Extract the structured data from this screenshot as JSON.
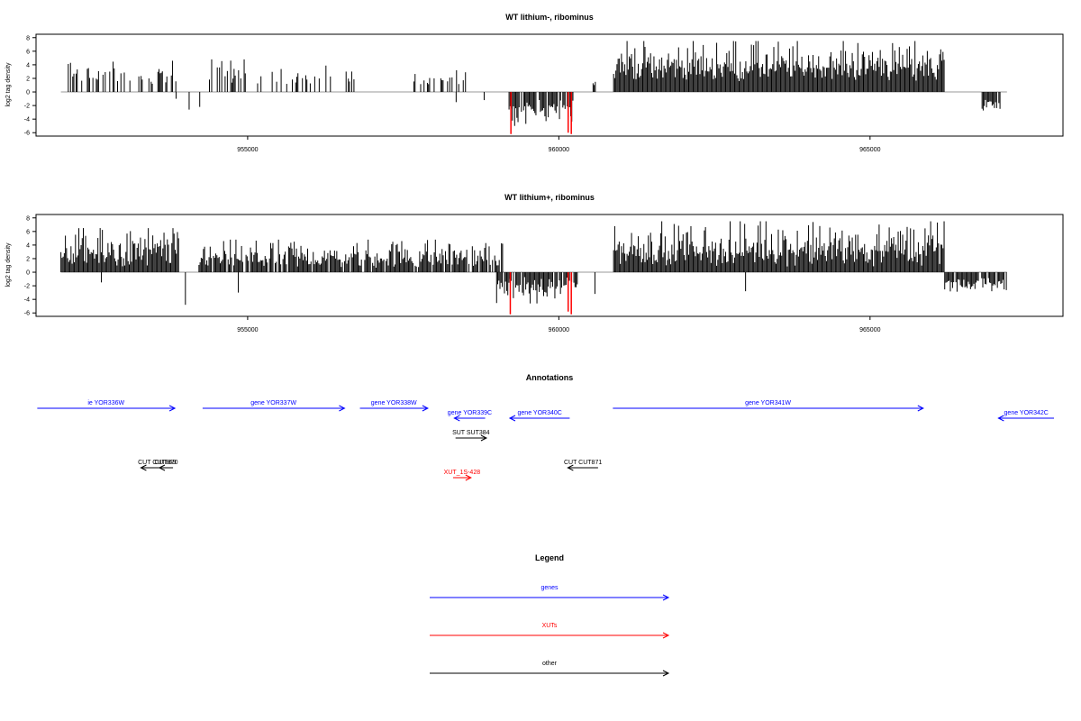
{
  "chart_data": [
    {
      "type": "bar",
      "title": "WT lithium-, ribominus",
      "ylabel": "log2 tag density",
      "xlim": [
        951600,
        968100
      ],
      "ylim": [
        -6.5,
        8.5
      ],
      "yticks": [
        8,
        6,
        4,
        2,
        0,
        -2,
        -4,
        -6
      ],
      "xticks": [
        955000,
        960000,
        965000
      ],
      "highlight_color": "#ff0000",
      "bar_color": "#000000",
      "blocks": [
        {
          "from": 952100,
          "to": 953850,
          "sign": 1,
          "min": 1.0,
          "max": 4.6,
          "density": 0.35
        },
        {
          "from": 954350,
          "to": 956800,
          "sign": 1,
          "min": 1.0,
          "max": 4.8,
          "density": 0.35
        },
        {
          "from": 957600,
          "to": 958500,
          "sign": 1,
          "min": 0.8,
          "max": 3.2,
          "density": 0.25
        },
        {
          "from": 959200,
          "to": 960230,
          "sign": -1,
          "min": 1.0,
          "max": 5.0,
          "density": 0.85
        },
        {
          "from": 960550,
          "to": 960600,
          "sign": 1,
          "min": 1.0,
          "max": 1.8,
          "density": 1.0
        },
        {
          "from": 960880,
          "to": 966200,
          "sign": 1,
          "min": 1.5,
          "max": 7.5,
          "density": 1.0
        },
        {
          "from": 966800,
          "to": 967100,
          "sign": -1,
          "min": 1.0,
          "max": 3.2,
          "density": 0.7
        }
      ],
      "spikes": [
        {
          "x": 953850,
          "y": -1.0
        },
        {
          "x": 954060,
          "y": -2.6
        },
        {
          "x": 954230,
          "y": -2.2
        },
        {
          "x": 958350,
          "y": -1.5
        },
        {
          "x": 958500,
          "y": 2.9
        },
        {
          "x": 958800,
          "y": -1.2
        },
        {
          "x": 959230,
          "y": -6.2,
          "highlight": true
        },
        {
          "x": 960150,
          "y": -6.0,
          "highlight": true
        },
        {
          "x": 960200,
          "y": -6.2,
          "highlight": true
        }
      ]
    },
    {
      "type": "bar",
      "title": "WT lithium+, ribominus",
      "ylabel": "log2 tag density",
      "xlim": [
        951600,
        968100
      ],
      "ylim": [
        -6.5,
        8.5
      ],
      "yticks": [
        8,
        6,
        4,
        2,
        0,
        -2,
        -4,
        -6
      ],
      "xticks": [
        955000,
        960000,
        965000
      ],
      "highlight_color": "#ff0000",
      "bar_color": "#000000",
      "blocks": [
        {
          "from": 952000,
          "to": 953900,
          "sign": 1,
          "min": 0.5,
          "max": 6.5,
          "density": 1.0
        },
        {
          "from": 954200,
          "to": 959100,
          "sign": 1,
          "min": 0.5,
          "max": 4.8,
          "density": 0.9
        },
        {
          "from": 959000,
          "to": 960300,
          "sign": -1,
          "min": 0.5,
          "max": 4.6,
          "density": 0.9
        },
        {
          "from": 960880,
          "to": 966200,
          "sign": 1,
          "min": 0.8,
          "max": 7.5,
          "density": 1.0
        },
        {
          "from": 966200,
          "to": 967200,
          "sign": -1,
          "min": 0.8,
          "max": 3.3,
          "density": 0.8
        }
      ],
      "spikes": [
        {
          "x": 952650,
          "y": -1.5
        },
        {
          "x": 954000,
          "y": -4.8
        },
        {
          "x": 954850,
          "y": -3.0
        },
        {
          "x": 963000,
          "y": -2.8
        },
        {
          "x": 960580,
          "y": -3.2
        },
        {
          "x": 959220,
          "y": -6.2,
          "highlight": true
        },
        {
          "x": 960150,
          "y": -5.8,
          "highlight": true
        },
        {
          "x": 960200,
          "y": -6.2,
          "highlight": true
        }
      ]
    }
  ],
  "annotations": {
    "title": "Annotations",
    "x_range": [
      951600,
      968100
    ],
    "items": [
      {
        "label": "ie YOR336W",
        "from": 951620,
        "to": 953850,
        "dir": "right",
        "row": 0,
        "color": "#0000ff"
      },
      {
        "label": "gene YOR337W",
        "from": 954300,
        "to": 956600,
        "dir": "right",
        "row": 0,
        "color": "#0000ff"
      },
      {
        "label": "gene YOR338W",
        "from": 956850,
        "to": 957950,
        "dir": "right",
        "row": 0,
        "color": "#0000ff"
      },
      {
        "label": "gene YOR339C",
        "from": 958380,
        "to": 958880,
        "dir": "left",
        "row": 1,
        "color": "#0000ff"
      },
      {
        "label": "gene YOR340C",
        "from": 959280,
        "to": 960250,
        "dir": "left",
        "row": 1,
        "color": "#0000ff"
      },
      {
        "label": "gene YOR341W",
        "from": 960950,
        "to": 965980,
        "dir": "right",
        "row": 0,
        "color": "#0000ff"
      },
      {
        "label": "gene YOR342C",
        "from": 967200,
        "to": 968100,
        "dir": "left",
        "row": 1,
        "color": "#0000ff"
      },
      {
        "label": "SUT SUT384",
        "from": 958400,
        "to": 958900,
        "dir": "right",
        "row": 3,
        "color": "#000000"
      },
      {
        "label": "CUT CUT869",
        "from": 953300,
        "to": 953820,
        "dir": "left",
        "row": 6,
        "color": "#000000"
      },
      {
        "label": "CUT870",
        "from": 953600,
        "to": 953820,
        "dir": "left",
        "row": 6,
        "color": "#000000"
      },
      {
        "label": "CUT CUT871",
        "from": 960220,
        "to": 960710,
        "dir": "left",
        "row": 6,
        "color": "#000000"
      },
      {
        "label": "XUT_1S-428",
        "from": 958360,
        "to": 958650,
        "dir": "right",
        "row": 7,
        "color": "#ff0000"
      }
    ]
  },
  "legend": {
    "title": "Legend",
    "items": [
      {
        "label": "genes",
        "color": "#0000ff"
      },
      {
        "label": "XUTs",
        "color": "#ff0000"
      },
      {
        "label": "other",
        "color": "#000000"
      }
    ]
  }
}
